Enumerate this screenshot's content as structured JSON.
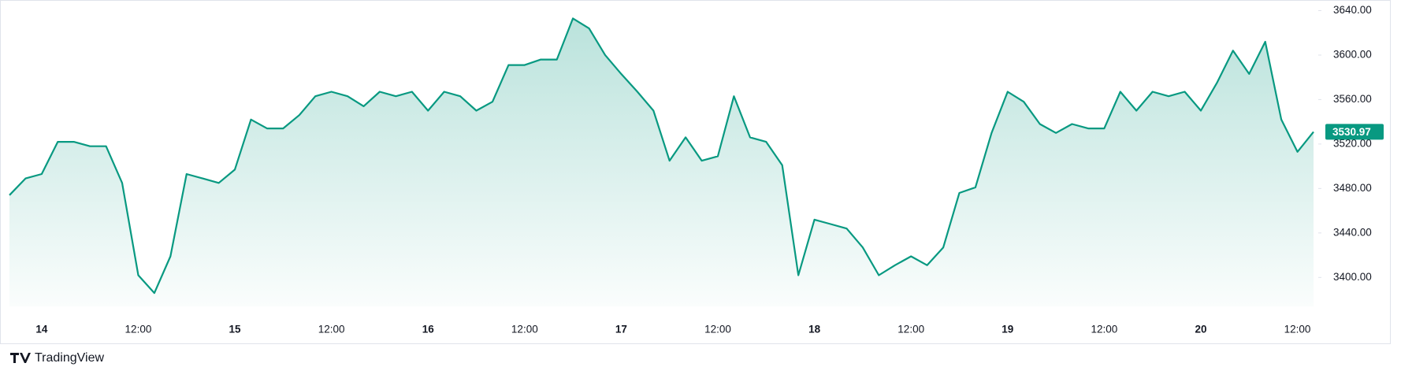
{
  "chart_data": {
    "type": "area",
    "brand": "TradingView",
    "color": "#089981",
    "categories": [
      null,
      null,
      "14",
      null,
      null,
      null,
      null,
      null,
      "12:00",
      null,
      null,
      null,
      null,
      null,
      "15",
      null,
      null,
      null,
      null,
      null,
      "12:00",
      null,
      null,
      null,
      null,
      null,
      "16",
      null,
      null,
      null,
      null,
      null,
      "12:00",
      null,
      null,
      null,
      null,
      null,
      "17",
      null,
      null,
      null,
      null,
      null,
      "12:00",
      null,
      null,
      null,
      null,
      null,
      "18",
      null,
      null,
      null,
      null,
      null,
      "12:00",
      null,
      null,
      null,
      null,
      null,
      "19",
      null,
      null,
      null,
      null,
      null,
      "12:00",
      null,
      null,
      null,
      null,
      null,
      "20",
      null,
      null,
      null,
      null,
      null,
      "12:00",
      null
    ],
    "values": [
      3474,
      3489,
      3493,
      3522,
      3522,
      3518,
      3518,
      3485,
      3402,
      3386,
      3419,
      3493,
      3489,
      3485,
      3497,
      3542,
      3534,
      3534,
      3546,
      3563,
      3567,
      3563,
      3554,
      3567,
      3563,
      3567,
      3550,
      3567,
      3563,
      3550,
      3558,
      3591,
      3591,
      3596,
      3596,
      3633,
      3624,
      3600,
      3583,
      3567,
      3550,
      3505,
      3526,
      3505,
      3509,
      3563,
      3526,
      3522,
      3501,
      3402,
      3452,
      3448,
      3444,
      3427,
      3402,
      3411,
      3419,
      3411,
      3427,
      3476,
      3481,
      3530,
      3567,
      3558,
      3538,
      3530,
      3538,
      3534,
      3534,
      3567,
      3550,
      3567,
      3563,
      3567,
      3550,
      3575,
      3604,
      3583,
      3612,
      3542,
      3513,
      3530.97
    ],
    "ylim": [
      3374,
      3646
    ],
    "yticks": [
      {
        "value": 3400,
        "label": "3400.00"
      },
      {
        "value": 3440,
        "label": "3440.00"
      },
      {
        "value": 3480,
        "label": "3480.00"
      },
      {
        "value": 3520,
        "label": "3520.00"
      },
      {
        "value": 3560,
        "label": "3560.00"
      },
      {
        "value": 3600,
        "label": "3600.00"
      },
      {
        "value": 3640,
        "label": "3640.00"
      }
    ]
  }
}
